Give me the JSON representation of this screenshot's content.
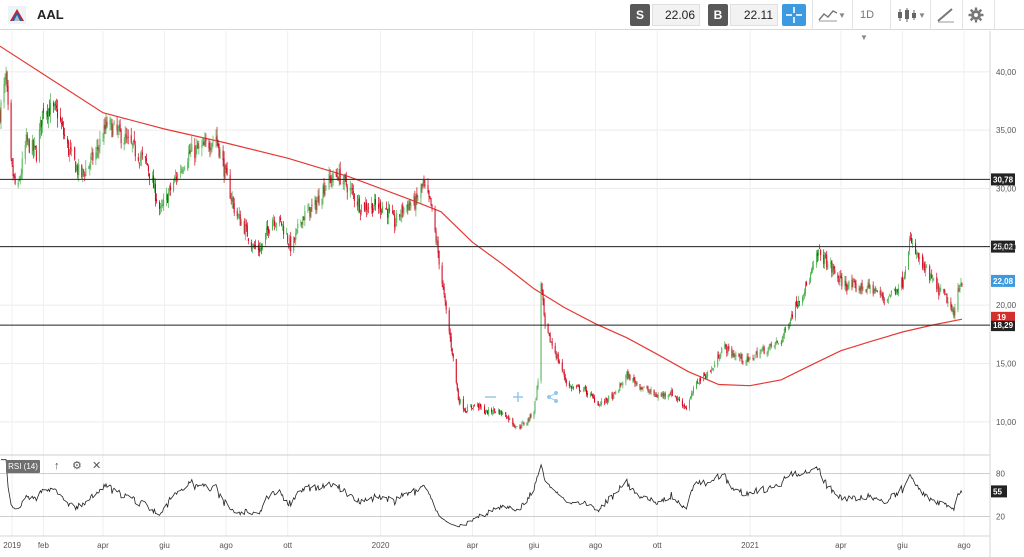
{
  "toolbar": {
    "symbol": "AAL",
    "sell_label": "S",
    "sell_price": "22.06",
    "buy_label": "B",
    "buy_price": "22.11",
    "interval": "1D"
  },
  "icons": {
    "logo": "american-airlines-logo-icon",
    "crosshair": "crosshair-icon",
    "chart_type": "line-chart-icon",
    "candles": "candlestick-icon",
    "draw": "drawing-tools-icon",
    "settings": "gear-icon",
    "watermark_tools": [
      "minus-icon",
      "crosshair-icon",
      "share-icon"
    ]
  },
  "colors": {
    "up": "#4caf50",
    "down": "#d0021b",
    "ma": "#e53935",
    "level": "#222222",
    "accent": "#3d9ae0",
    "last_price_badge": "#3d9ae0",
    "ma_badge": "#d32f2f"
  },
  "rsi": {
    "label": "RSI (14)",
    "current_badge": "55",
    "levels": [
      "80",
      "20"
    ],
    "controls": [
      "↑",
      "⚙",
      "✕"
    ]
  },
  "chart_data": [
    {
      "type": "candlestick",
      "symbol": "AAL",
      "y_ticks": [
        "40,00",
        "35,00",
        "30,00",
        "25,00",
        "20,00",
        "15,00",
        "10,00"
      ],
      "ylim": [
        7.5,
        43.5
      ],
      "x_ticks": [
        "2019",
        "feb",
        "apr",
        "giu",
        "ago",
        "ott",
        "2020",
        "apr",
        "giu",
        "ago",
        "ott",
        "2021",
        "apr",
        "giu",
        "ago"
      ],
      "horizontal_levels": [
        {
          "value": 30.78,
          "label": "30,78"
        },
        {
          "value": 25.02,
          "label": "25,02"
        },
        {
          "value": 18.29,
          "label": "18,29"
        }
      ],
      "last_price_label": "22,08",
      "ma_label": "19",
      "anchors": [
        [
          "2018-12-20",
          36.5
        ],
        [
          "2018-12-26",
          39.5
        ],
        [
          "2018-12-31",
          32
        ],
        [
          "2019-01-06",
          29.5
        ],
        [
          "2019-01-15",
          34
        ],
        [
          "2019-01-25",
          33
        ],
        [
          "2019-02-01",
          37
        ],
        [
          "2019-02-15",
          36.5
        ],
        [
          "2019-02-25",
          33.5
        ],
        [
          "2019-03-10",
          31
        ],
        [
          "2019-03-25",
          33
        ],
        [
          "2019-04-05",
          35.5
        ],
        [
          "2019-04-20",
          34.5
        ],
        [
          "2019-05-05",
          33
        ],
        [
          "2019-05-15",
          32
        ],
        [
          "2019-05-28",
          28
        ],
        [
          "2019-06-10",
          30.5
        ],
        [
          "2019-06-25",
          33
        ],
        [
          "2019-07-10",
          33.5
        ],
        [
          "2019-07-22",
          34.5
        ],
        [
          "2019-08-01",
          31
        ],
        [
          "2019-08-10",
          28
        ],
        [
          "2019-08-20",
          26.5
        ],
        [
          "2019-08-28",
          25
        ],
        [
          "2019-09-05",
          24.8
        ],
        [
          "2019-09-15",
          27.5
        ],
        [
          "2019-09-25",
          27
        ],
        [
          "2019-10-05",
          24.8
        ],
        [
          "2019-10-15",
          27.5
        ],
        [
          "2019-10-28",
          28.5
        ],
        [
          "2019-11-08",
          30.5
        ],
        [
          "2019-11-20",
          31.2
        ],
        [
          "2019-12-01",
          30
        ],
        [
          "2019-12-12",
          28.5
        ],
        [
          "2019-12-25",
          28.5
        ],
        [
          "2020-01-05",
          28.5
        ],
        [
          "2020-01-15",
          27
        ],
        [
          "2020-01-25",
          28.5
        ],
        [
          "2020-02-05",
          28.8
        ],
        [
          "2020-02-12",
          30.3
        ],
        [
          "2020-02-20",
          28.5
        ],
        [
          "2020-02-27",
          24.5
        ],
        [
          "2020-03-05",
          20
        ],
        [
          "2020-03-12",
          16
        ],
        [
          "2020-03-18",
          12
        ],
        [
          "2020-03-25",
          11
        ],
        [
          "2020-04-05",
          11.5
        ],
        [
          "2020-04-15",
          10.8
        ],
        [
          "2020-04-25",
          11
        ],
        [
          "2020-05-05",
          10.5
        ],
        [
          "2020-05-15",
          9.5
        ],
        [
          "2020-05-25",
          10
        ],
        [
          "2020-06-01",
          11
        ],
        [
          "2020-06-05",
          13.5
        ],
        [
          "2020-06-08",
          22
        ],
        [
          "2020-06-12",
          18
        ],
        [
          "2020-06-22",
          16
        ],
        [
          "2020-07-05",
          13
        ],
        [
          "2020-07-20",
          12.8
        ],
        [
          "2020-08-05",
          11.5
        ],
        [
          "2020-08-20",
          12.3
        ],
        [
          "2020-09-01",
          14
        ],
        [
          "2020-09-15",
          13
        ],
        [
          "2020-10-01",
          12.2
        ],
        [
          "2020-10-15",
          12.5
        ],
        [
          "2020-10-30",
          11.2
        ],
        [
          "2020-11-10",
          13.5
        ],
        [
          "2020-11-25",
          14.5
        ],
        [
          "2020-12-05",
          16.5
        ],
        [
          "2020-12-15",
          15.8
        ],
        [
          "2020-12-30",
          15.2
        ],
        [
          "2021-01-10",
          16
        ],
        [
          "2021-01-20",
          16.3
        ],
        [
          "2021-02-01",
          17
        ],
        [
          "2021-02-15",
          20
        ],
        [
          "2021-02-28",
          22
        ],
        [
          "2021-03-10",
          24.5
        ],
        [
          "2021-03-20",
          23.5
        ],
        [
          "2021-04-01",
          22
        ],
        [
          "2021-04-15",
          21.5
        ],
        [
          "2021-05-01",
          21.5
        ],
        [
          "2021-05-15",
          20.5
        ],
        [
          "2021-06-01",
          22
        ],
        [
          "2021-06-08",
          25.5
        ],
        [
          "2021-06-20",
          23.5
        ],
        [
          "2021-07-05",
          21.5
        ],
        [
          "2021-07-15",
          20.5
        ],
        [
          "2021-07-22",
          19
        ],
        [
          "2021-07-26",
          21.5
        ],
        [
          "2021-07-30",
          22.1
        ]
      ],
      "moving_average": [
        [
          "2018-12-20",
          42.2
        ],
        [
          "2019-02-01",
          39.8
        ],
        [
          "2019-04-01",
          36.5
        ],
        [
          "2019-06-01",
          35.1
        ],
        [
          "2019-08-01",
          33.9
        ],
        [
          "2019-10-01",
          32.6
        ],
        [
          "2019-12-01",
          31.0
        ],
        [
          "2020-02-01",
          29.0
        ],
        [
          "2020-03-01",
          28.0
        ],
        [
          "2020-04-01",
          25.4
        ],
        [
          "2020-05-01",
          23.5
        ],
        [
          "2020-06-01",
          21.4
        ],
        [
          "2020-07-01",
          19.8
        ],
        [
          "2020-08-01",
          18.4
        ],
        [
          "2020-09-01",
          17.2
        ],
        [
          "2020-10-01",
          15.8
        ],
        [
          "2020-11-01",
          14.3
        ],
        [
          "2020-12-01",
          13.2
        ],
        [
          "2021-01-01",
          13.1
        ],
        [
          "2021-02-01",
          13.6
        ],
        [
          "2021-03-01",
          14.8
        ],
        [
          "2021-04-01",
          16.1
        ],
        [
          "2021-05-01",
          16.9
        ],
        [
          "2021-06-01",
          17.7
        ],
        [
          "2021-07-01",
          18.3
        ],
        [
          "2021-07-30",
          18.8
        ]
      ]
    },
    {
      "type": "line",
      "name": "RSI (14)",
      "ylim": [
        0,
        100
      ],
      "y_ticks": [
        "80",
        "20"
      ],
      "current": 55
    }
  ]
}
